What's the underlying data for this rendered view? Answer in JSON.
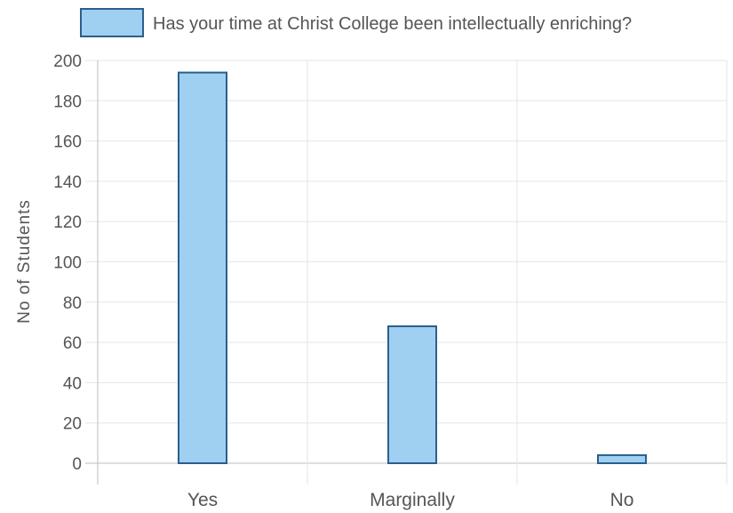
{
  "chart_data": {
    "type": "bar",
    "categories": [
      "Yes",
      "Marginally",
      "No"
    ],
    "series": [
      {
        "name": "Has your time at Christ College been intellectually enriching?",
        "values": [
          194,
          68,
          4
        ]
      }
    ],
    "xlabel": "",
    "ylabel": "No of Students",
    "ylim": [
      0,
      200
    ],
    "yticks": [
      0,
      20,
      40,
      60,
      80,
      100,
      120,
      140,
      160,
      180,
      200
    ],
    "grid": true,
    "legend": "top-center",
    "colors": {
      "bar_fill": "#9fd0f2",
      "bar_stroke": "#2a5f8c",
      "grid": "#e6e6e6",
      "axis": "#bdbdbd",
      "text": "#555555"
    }
  }
}
